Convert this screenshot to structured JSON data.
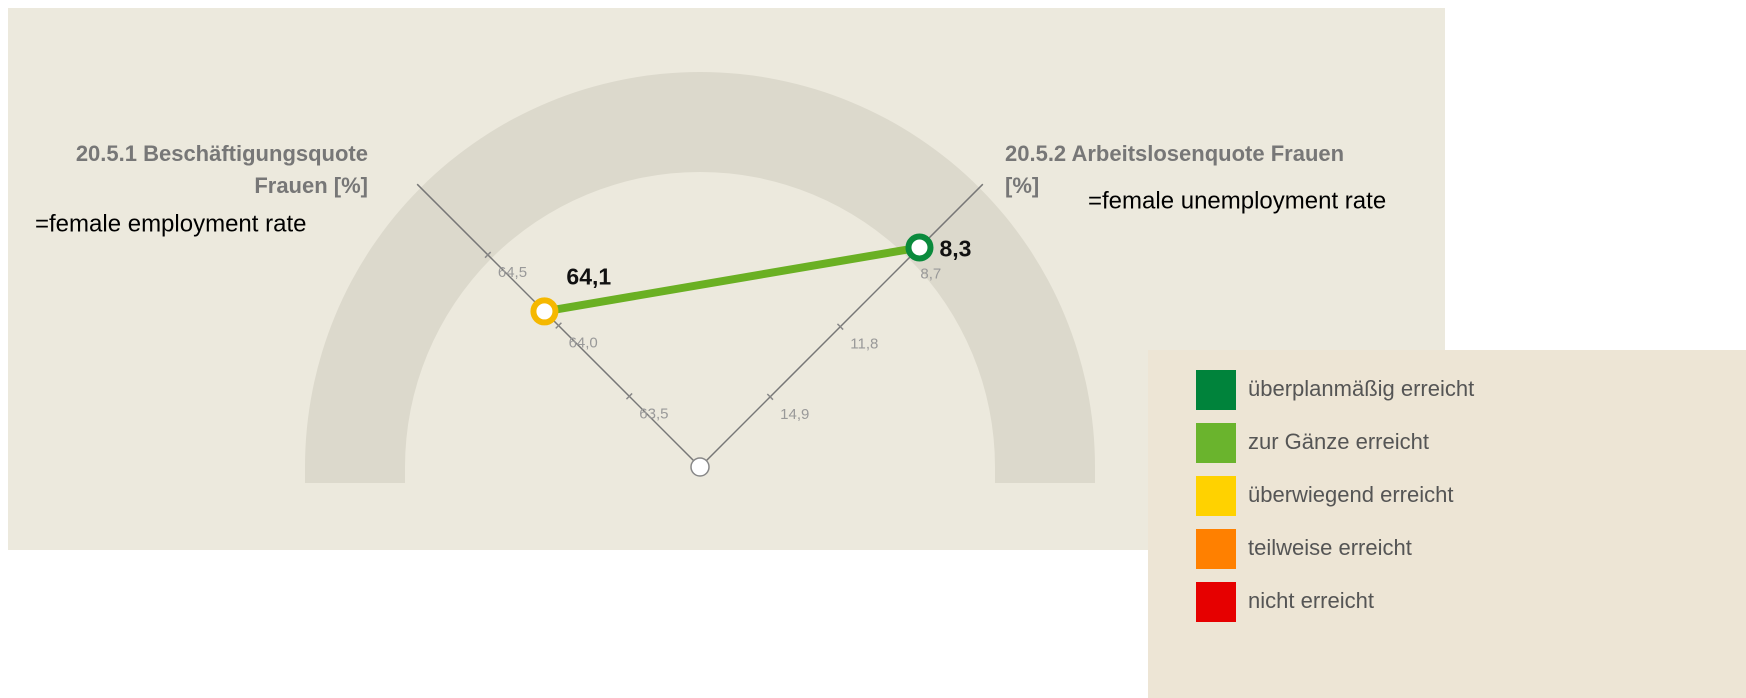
{
  "chart_data": {
    "type": "gauge",
    "axes": [
      {
        "label_lines": [
          "20.5.1 Beschäftigungsquote",
          "Frauen [%]"
        ],
        "note": "=female employment rate",
        "lim": [
          63,
          65
        ],
        "ticks": [
          {
            "value": 64.5,
            "label": "64,5"
          },
          {
            "value": 64.0,
            "label": "64,0"
          },
          {
            "value": 63.5,
            "label": "63,5"
          }
        ],
        "value": 64.1,
        "value_label": "64,1",
        "color": "#f5b800"
      },
      {
        "label_lines": [
          "20.5.2 Arbeitslosenquote Frauen",
          "[%]"
        ],
        "note": "=female unemployment rate",
        "lim": [
          18,
          5.5
        ],
        "ticks": [
          {
            "value": 8.7,
            "label": "8,7"
          },
          {
            "value": 11.8,
            "label": "11,8"
          },
          {
            "value": 14.9,
            "label": "14,9"
          }
        ],
        "value": 8.3,
        "value_label": "8,3",
        "color": "#0a8a3c"
      }
    ],
    "line_color": "#6ab023",
    "legend": [
      {
        "label": "überplanmäßig erreicht",
        "color": "#00833b"
      },
      {
        "label": "zur Gänze erreicht",
        "color": "#6ab42d"
      },
      {
        "label": "überwiegend erreicht",
        "color": "#ffd200"
      },
      {
        "label": "teilweise erreicht",
        "color": "#ff8000"
      },
      {
        "label": "nicht erreicht",
        "color": "#e60000"
      }
    ]
  }
}
